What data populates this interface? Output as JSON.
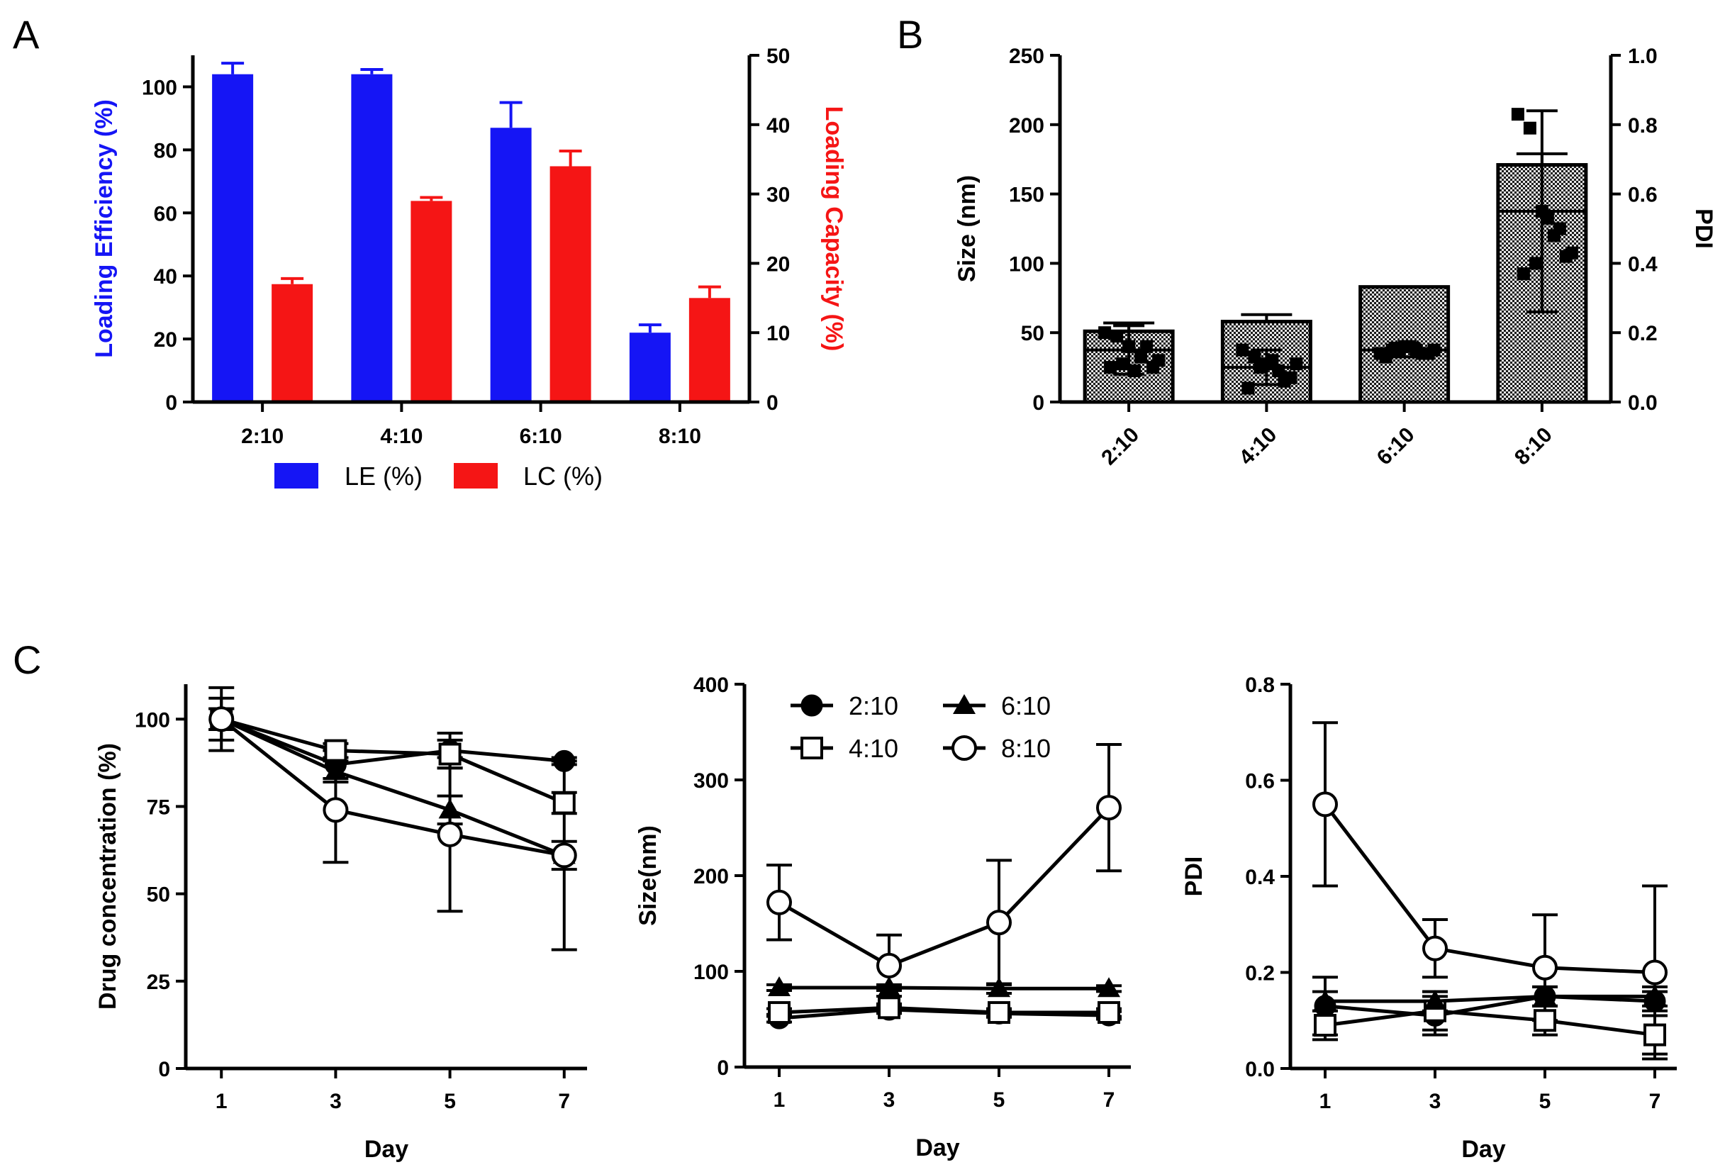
{
  "panels": {
    "a": "A",
    "b": "B",
    "c": "C"
  },
  "colors": {
    "le": "#1515f5",
    "lc": "#f51515",
    "ink": "#000000"
  },
  "chart_data": [
    {
      "id": "A",
      "type": "bar",
      "categories": [
        "2:10",
        "4:10",
        "6:10",
        "8:10"
      ],
      "series": [
        {
          "name": "LE (%)",
          "axis": "left",
          "values": [
            104,
            104,
            87,
            22
          ],
          "errors": [
            3.5,
            1.5,
            8,
            2.5
          ]
        },
        {
          "name": "LC (%)",
          "axis": "right",
          "values": [
            17,
            29,
            34,
            15
          ],
          "errors": [
            0.8,
            0.5,
            2.2,
            1.6
          ]
        }
      ],
      "ylabel": "Loading Efficiency (%)",
      "ylabel_right": "Loading Capacity (%)",
      "ylim": [
        0,
        110
      ],
      "yticks": [
        "0",
        "20",
        "40",
        "60",
        "80",
        "100"
      ],
      "ylim_right": [
        0,
        50
      ],
      "yticks_right": [
        "0",
        "10",
        "20",
        "30",
        "40",
        "50"
      ],
      "legend": [
        "LE (%)",
        "LC (%)"
      ]
    },
    {
      "id": "B",
      "type": "bar",
      "categories": [
        "2:10",
        "4:10",
        "6:10",
        "8:10"
      ],
      "size_nm": [
        51,
        58,
        83,
        171
      ],
      "size_err": [
        6,
        5,
        0,
        8
      ],
      "pdi_points": [
        [
          0.2,
          0.19,
          0.16,
          0.13,
          0.1,
          0.1,
          0.11,
          0.09,
          0.16,
          0.12
        ],
        [
          0.15,
          0.13,
          0.11,
          0.09,
          0.07,
          0.04,
          0.1,
          0.12,
          0.06,
          0.11
        ],
        [
          0.14,
          0.15,
          0.16,
          0.15,
          0.14,
          0.13,
          0.15,
          0.16,
          0.14,
          0.15
        ],
        [
          0.83,
          0.79,
          0.55,
          0.48,
          0.42,
          0.37,
          0.4,
          0.53,
          0.5,
          0.43
        ]
      ],
      "pdi_mean": [
        0.15,
        0.1,
        0.15,
        0.55
      ],
      "pdi_err": [
        0.07,
        0.05,
        0.02,
        0.29
      ],
      "ylabel": "Size (nm)",
      "ylabel_right": "PDI",
      "ylim": [
        0,
        250
      ],
      "yticks": [
        "0",
        "50",
        "100",
        "150",
        "200",
        "250"
      ],
      "ylim_right": [
        0,
        1
      ],
      "yticks_right": [
        "0.0",
        "0.2",
        "0.4",
        "0.6",
        "0.8",
        "1.0"
      ]
    },
    {
      "id": "C1",
      "type": "line",
      "x": [
        1,
        3,
        5,
        7
      ],
      "xticks": [
        "1",
        "3",
        "5",
        "7"
      ],
      "xlabel": "Day",
      "ylabel": "Drug concentration (%)",
      "ylim": [
        0,
        110
      ],
      "yticks": [
        "0",
        "25",
        "50",
        "75",
        "100"
      ],
      "series": [
        {
          "name": "2:10",
          "marker": "circle-filled",
          "values": [
            100,
            87,
            91,
            88
          ],
          "errors": [
            9,
            4,
            5,
            1
          ]
        },
        {
          "name": "4:10",
          "marker": "square-open",
          "values": [
            100,
            91,
            90,
            76
          ],
          "errors": [
            3,
            2,
            4,
            3
          ]
        },
        {
          "name": "6:10",
          "marker": "triangle-filled",
          "values": [
            100,
            85,
            74,
            61
          ],
          "errors": [
            3,
            3,
            4,
            4
          ]
        },
        {
          "name": "8:10",
          "marker": "circle-open",
          "values": [
            100,
            74,
            67,
            61
          ],
          "errors": [
            6,
            15,
            22,
            27
          ]
        }
      ]
    },
    {
      "id": "C2",
      "type": "line",
      "x": [
        1,
        3,
        5,
        7
      ],
      "xticks": [
        "1",
        "3",
        "5",
        "7"
      ],
      "xlabel": "Day",
      "ylabel": "Size(nm)",
      "ylim": [
        0,
        400
      ],
      "yticks": [
        "0",
        "100",
        "200",
        "300",
        "400"
      ],
      "legend": [
        "2:10",
        "6:10",
        "4:10",
        "8:10"
      ],
      "series": [
        {
          "name": "2:10",
          "marker": "circle-filled",
          "values": [
            51,
            60,
            56,
            54
          ],
          "errors": [
            4,
            4,
            4,
            4
          ]
        },
        {
          "name": "4:10",
          "marker": "square-open",
          "values": [
            57,
            62,
            57,
            57
          ],
          "errors": [
            4,
            4,
            4,
            4
          ]
        },
        {
          "name": "6:10",
          "marker": "triangle-filled",
          "values": [
            83,
            83,
            82,
            82
          ],
          "errors": [
            3,
            3,
            5,
            3
          ]
        },
        {
          "name": "8:10",
          "marker": "circle-open",
          "values": [
            172,
            106,
            151,
            271
          ],
          "errors": [
            39,
            32,
            65,
            66
          ]
        }
      ]
    },
    {
      "id": "C3",
      "type": "line",
      "x": [
        1,
        3,
        5,
        7
      ],
      "xticks": [
        "1",
        "3",
        "5",
        "7"
      ],
      "xlabel": "Day",
      "ylabel": "PDI",
      "ylim": [
        0,
        0.8
      ],
      "yticks": [
        "0.0",
        "0.2",
        "0.4",
        "0.6",
        "0.8"
      ],
      "series": [
        {
          "name": "2:10",
          "marker": "circle-filled",
          "values": [
            0.13,
            0.11,
            0.15,
            0.14
          ],
          "errors": [
            0.06,
            0.04,
            0.02,
            0.02
          ]
        },
        {
          "name": "4:10",
          "marker": "square-open",
          "values": [
            0.09,
            0.12,
            0.1,
            0.07
          ],
          "errors": [
            0.03,
            0.04,
            0.03,
            0.04
          ]
        },
        {
          "name": "6:10",
          "marker": "triangle-filled",
          "values": [
            0.14,
            0.14,
            0.15,
            0.15
          ],
          "errors": [
            0.02,
            0.02,
            0.02,
            0.02
          ]
        },
        {
          "name": "8:10",
          "marker": "circle-open",
          "values": [
            0.55,
            0.25,
            0.21,
            0.2
          ],
          "errors": [
            0.17,
            0.06,
            0.11,
            0.18
          ]
        }
      ]
    }
  ]
}
